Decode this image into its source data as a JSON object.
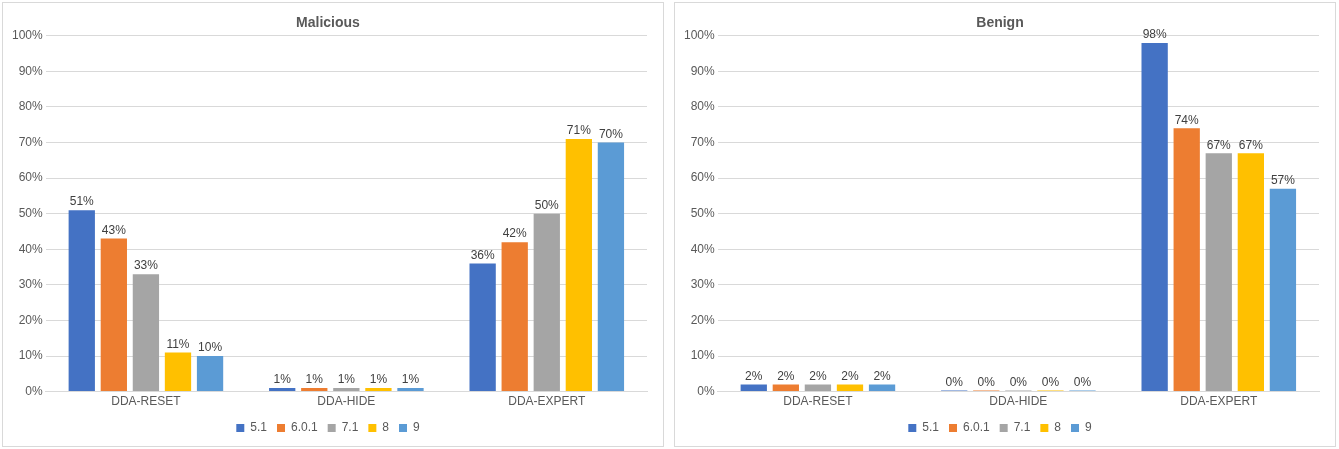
{
  "chart_data": [
    {
      "type": "bar",
      "title": "Malicious",
      "categories": [
        "DDA-RESET",
        "DDA-HIDE",
        "DDA-EXPERT"
      ],
      "ylim": [
        0,
        100
      ],
      "yticks": [
        {
          "value": 0,
          "label": "0%"
        },
        {
          "value": 10,
          "label": "10%"
        },
        {
          "value": 20,
          "label": "20%"
        },
        {
          "value": 30,
          "label": "30%"
        },
        {
          "value": 40,
          "label": "40%"
        },
        {
          "value": 50,
          "label": "50%"
        },
        {
          "value": 60,
          "label": "60%"
        },
        {
          "value": 70,
          "label": "70%"
        },
        {
          "value": 80,
          "label": "80%"
        },
        {
          "value": 90,
          "label": "90%"
        },
        {
          "value": 100,
          "label": "100%"
        }
      ],
      "grid": "y",
      "legend": "bottom",
      "series": [
        {
          "name": "5.1",
          "color": "#4472c4",
          "values": [
            51,
            1,
            36
          ],
          "value_labels": [
            "51%",
            "1%",
            "36%"
          ]
        },
        {
          "name": "6.0.1",
          "color": "#ed7d31",
          "values": [
            43,
            1,
            42
          ],
          "value_labels": [
            "43%",
            "1%",
            "42%"
          ]
        },
        {
          "name": "7.1",
          "color": "#a5a5a5",
          "values": [
            33,
            1,
            50
          ],
          "value_labels": [
            "33%",
            "1%",
            "50%"
          ]
        },
        {
          "name": "8",
          "color": "#ffc000",
          "values": [
            11,
            1,
            71
          ],
          "value_labels": [
            "11%",
            "1%",
            "71%"
          ]
        },
        {
          "name": "9",
          "color": "#5b9bd5",
          "values": [
            10,
            1,
            70
          ],
          "value_labels": [
            "10%",
            "1%",
            "70%"
          ]
        }
      ]
    },
    {
      "type": "bar",
      "title": "Benign",
      "categories": [
        "DDA-RESET",
        "DDA-HIDE",
        "DDA-EXPERT"
      ],
      "ylim": [
        0,
        100
      ],
      "yticks": [
        {
          "value": 0,
          "label": "0%"
        },
        {
          "value": 10,
          "label": "10%"
        },
        {
          "value": 20,
          "label": "20%"
        },
        {
          "value": 30,
          "label": "30%"
        },
        {
          "value": 40,
          "label": "40%"
        },
        {
          "value": 50,
          "label": "50%"
        },
        {
          "value": 60,
          "label": "60%"
        },
        {
          "value": 70,
          "label": "70%"
        },
        {
          "value": 80,
          "label": "80%"
        },
        {
          "value": 90,
          "label": "90%"
        },
        {
          "value": 100,
          "label": "100%"
        }
      ],
      "grid": "y",
      "legend": "bottom",
      "series": [
        {
          "name": "5.1",
          "color": "#4472c4",
          "values": [
            2,
            0,
            98
          ],
          "value_labels": [
            "2%",
            "0%",
            "98%"
          ]
        },
        {
          "name": "6.0.1",
          "color": "#ed7d31",
          "values": [
            2,
            0,
            74
          ],
          "value_labels": [
            "2%",
            "0%",
            "74%"
          ]
        },
        {
          "name": "7.1",
          "color": "#a5a5a5",
          "values": [
            2,
            0,
            67
          ],
          "value_labels": [
            "2%",
            "0%",
            "67%"
          ]
        },
        {
          "name": "8",
          "color": "#ffc000",
          "values": [
            2,
            0,
            67
          ],
          "value_labels": [
            "2%",
            "0%",
            "67%"
          ]
        },
        {
          "name": "9",
          "color": "#5b9bd5",
          "values": [
            2,
            0,
            57
          ],
          "value_labels": [
            "2%",
            "0%",
            "57%"
          ]
        }
      ]
    }
  ]
}
